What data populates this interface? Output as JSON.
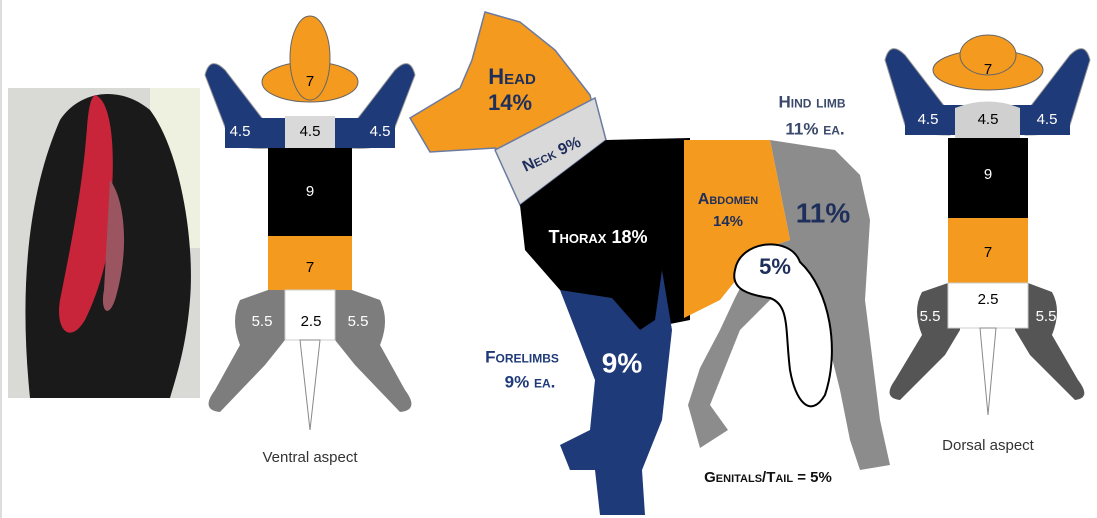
{
  "ventral": {
    "regions": {
      "head": "7",
      "left_forelimb": "4.5",
      "neck": "4.5",
      "right_forelimb": "4.5",
      "thorax": "9",
      "abdomen": "7",
      "genitals": "2.5",
      "left_hindlimb": "5.5",
      "right_hindlimb": "5.5"
    },
    "caption": "Ventral aspect"
  },
  "dog": {
    "head": {
      "name": "Head",
      "value": "14%"
    },
    "neck": "Neck 9%",
    "thorax": "Thorax 18%",
    "abdomen": {
      "name": "Abdomen",
      "value": "14%"
    },
    "hind_limb_value": "11%",
    "genitals_value": "5%",
    "forelimb_value": "9%",
    "hind_limb_note": {
      "name": "Hind limb",
      "value": "11% ea."
    },
    "forelimbs_note": {
      "name": "Forelimbs",
      "value": "9% ea."
    },
    "genitals_note": "Genitals/Tail = 5%"
  },
  "dorsal": {
    "regions": {
      "head": "7",
      "left_forelimb": "4.5",
      "neck": "4.5",
      "right_forelimb": "4.5",
      "thorax": "9",
      "abdomen": "7",
      "genitals": "2.5",
      "left_hindlimb": "5.5",
      "right_hindlimb": "5.5"
    },
    "caption": "Dorsal aspect"
  }
}
